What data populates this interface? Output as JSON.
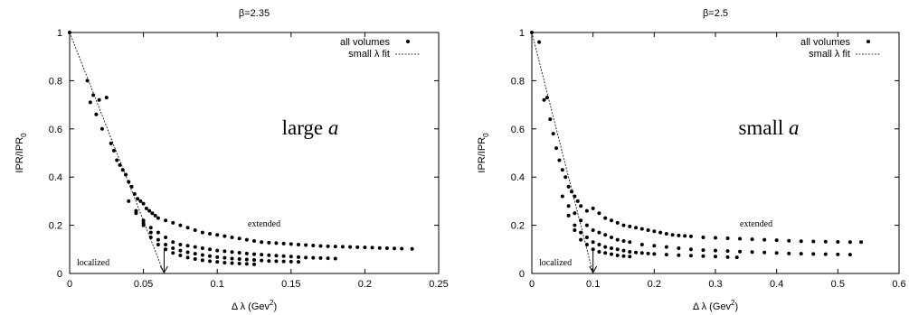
{
  "chart_data": [
    {
      "type": "scatter",
      "title": "β=2.35",
      "xlabel": "Δ λ (Gev",
      "xlabel_sup": "2",
      "xlabel_end": ")",
      "ylabel": "IPR/IPR",
      "ylabel_sub": "0",
      "xlim": [
        0,
        0.25
      ],
      "ylim": [
        0,
        1
      ],
      "xticks": [
        0,
        0.05,
        0.1,
        0.15,
        0.2,
        0.25
      ],
      "xtick_labels": [
        "0",
        "0.05",
        "0.1",
        "0.15",
        "0.2",
        "0.25"
      ],
      "yticks": [
        0,
        0.2,
        0.4,
        0.6,
        0.8,
        1
      ],
      "ytick_labels": [
        "0",
        "0.2",
        "0.4",
        "0.6",
        "0.8",
        "1"
      ],
      "legend_position": "top-right",
      "legend": [
        "all volumes",
        "small λ fit"
      ],
      "big_label": "large",
      "big_label_italic": "a",
      "annotation_extended": "extended",
      "annotation_localized": "localized",
      "fit_line": {
        "x0": 0,
        "y0": 1,
        "x1": 0.064,
        "y1": 0
      },
      "arrow_x": 0.064,
      "series": [
        {
          "name": "all volumes",
          "x": [
            0,
            0.012,
            0.014,
            0.016,
            0.018,
            0.02,
            0.022,
            0.025,
            0.028,
            0.03,
            0.032,
            0.034,
            0.036,
            0.038,
            0.04,
            0.042,
            0.044,
            0.046,
            0.048,
            0.05,
            0.052,
            0.054,
            0.056,
            0.058,
            0.06,
            0.065,
            0.07,
            0.075,
            0.08,
            0.085,
            0.09,
            0.095,
            0.1,
            0.105,
            0.11,
            0.115,
            0.12,
            0.125,
            0.13,
            0.135,
            0.14,
            0.145,
            0.15,
            0.155,
            0.16,
            0.165,
            0.17,
            0.175,
            0.18,
            0.185,
            0.19,
            0.195,
            0.2,
            0.205,
            0.21,
            0.215,
            0.22,
            0.225,
            0.232
          ],
          "y": [
            1,
            0.8,
            0.71,
            0.74,
            0.66,
            0.72,
            0.6,
            0.73,
            0.54,
            0.51,
            0.47,
            0.45,
            0.43,
            0.41,
            0.38,
            0.36,
            0.33,
            0.31,
            0.3,
            0.29,
            0.27,
            0.26,
            0.25,
            0.24,
            0.23,
            0.22,
            0.21,
            0.2,
            0.19,
            0.18,
            0.17,
            0.165,
            0.16,
            0.155,
            0.15,
            0.145,
            0.14,
            0.135,
            0.13,
            0.128,
            0.126,
            0.124,
            0.122,
            0.12,
            0.118,
            0.116,
            0.114,
            0.113,
            0.112,
            0.111,
            0.11,
            0.109,
            0.108,
            0.107,
            0.106,
            0.105,
            0.104,
            0.103,
            0.102
          ]
        },
        {
          "name": "",
          "x": [
            0.04,
            0.045,
            0.05,
            0.055,
            0.06,
            0.065,
            0.07,
            0.075,
            0.08,
            0.085,
            0.09,
            0.095,
            0.1,
            0.105,
            0.11,
            0.115,
            0.12,
            0.125,
            0.13,
            0.135,
            0.14,
            0.145,
            0.15,
            0.155,
            0.16,
            0.165,
            0.17,
            0.175,
            0.18
          ],
          "y": [
            0.3,
            0.26,
            0.22,
            0.19,
            0.17,
            0.15,
            0.13,
            0.12,
            0.115,
            0.11,
            0.105,
            0.1,
            0.095,
            0.092,
            0.089,
            0.086,
            0.083,
            0.08,
            0.078,
            0.076,
            0.074,
            0.072,
            0.07,
            0.068,
            0.066,
            0.065,
            0.064,
            0.063,
            0.062
          ]
        },
        {
          "name": "",
          "x": [
            0.045,
            0.05,
            0.055,
            0.06,
            0.065,
            0.07,
            0.075,
            0.08,
            0.085,
            0.09,
            0.095,
            0.1,
            0.105,
            0.11,
            0.115,
            0.12,
            0.125,
            0.13,
            0.135,
            0.14,
            0.145,
            0.15,
            0.155
          ],
          "y": [
            0.25,
            0.21,
            0.17,
            0.14,
            0.12,
            0.105,
            0.095,
            0.088,
            0.082,
            0.077,
            0.072,
            0.068,
            0.065,
            0.062,
            0.06,
            0.058,
            0.056,
            0.054,
            0.052,
            0.051,
            0.05,
            0.049,
            0.048
          ]
        },
        {
          "name": "",
          "x": [
            0.05,
            0.055,
            0.06,
            0.065,
            0.07,
            0.075,
            0.08,
            0.085,
            0.09,
            0.095,
            0.1,
            0.105,
            0.11,
            0.115,
            0.12,
            0.125
          ],
          "y": [
            0.2,
            0.15,
            0.12,
            0.1,
            0.085,
            0.075,
            0.066,
            0.06,
            0.055,
            0.051,
            0.048,
            0.045,
            0.043,
            0.041,
            0.04,
            0.038
          ]
        }
      ]
    },
    {
      "type": "scatter",
      "title": "β=2.5",
      "xlabel": "Δ λ (Gev",
      "xlabel_sup": "2",
      "xlabel_end": ")",
      "ylabel": "IPR/IPR",
      "ylabel_sub": "0",
      "xlim": [
        0,
        0.6
      ],
      "ylim": [
        0,
        1
      ],
      "xticks": [
        0,
        0.1,
        0.2,
        0.3,
        0.4,
        0.5,
        0.6
      ],
      "xtick_labels": [
        "0",
        "0.1",
        "0.2",
        "0.3",
        "0.4",
        "0.5",
        "0.6"
      ],
      "yticks": [
        0,
        0.2,
        0.4,
        0.6,
        0.8,
        1
      ],
      "ytick_labels": [
        "0",
        "0.2",
        "0.4",
        "0.6",
        "0.8",
        "1"
      ],
      "legend_position": "top-right",
      "legend": [
        "all volumes",
        "small λ fit"
      ],
      "big_label": "small",
      "big_label_italic": "a",
      "annotation_extended": "extended",
      "annotation_localized": "localized",
      "fit_line": {
        "x0": 0,
        "y0": 1,
        "x1": 0.1,
        "y1": 0
      },
      "arrow_x": 0.1,
      "series": [
        {
          "name": "all volumes",
          "x": [
            0,
            0.012,
            0.02,
            0.025,
            0.03,
            0.035,
            0.04,
            0.045,
            0.05,
            0.055,
            0.06,
            0.065,
            0.07,
            0.075,
            0.08,
            0.09,
            0.1,
            0.11,
            0.12,
            0.13,
            0.14,
            0.15,
            0.16,
            0.17,
            0.18,
            0.19,
            0.2,
            0.21,
            0.22,
            0.23,
            0.24,
            0.25,
            0.26,
            0.28,
            0.3,
            0.32,
            0.34,
            0.36,
            0.38,
            0.4,
            0.42,
            0.44,
            0.46,
            0.48,
            0.5,
            0.52,
            0.538
          ],
          "y": [
            1,
            0.96,
            0.72,
            0.73,
            0.64,
            0.58,
            0.52,
            0.47,
            0.43,
            0.4,
            0.36,
            0.34,
            0.32,
            0.3,
            0.28,
            0.26,
            0.27,
            0.25,
            0.23,
            0.22,
            0.21,
            0.2,
            0.195,
            0.19,
            0.185,
            0.18,
            0.175,
            0.17,
            0.165,
            0.16,
            0.158,
            0.156,
            0.154,
            0.15,
            0.148,
            0.146,
            0.144,
            0.142,
            0.14,
            0.138,
            0.136,
            0.134,
            0.133,
            0.132,
            0.131,
            0.13,
            0.13
          ]
        },
        {
          "name": "",
          "x": [
            0.05,
            0.06,
            0.07,
            0.08,
            0.09,
            0.1,
            0.11,
            0.12,
            0.13,
            0.14,
            0.15,
            0.16,
            0.18,
            0.2,
            0.22,
            0.24,
            0.26,
            0.28,
            0.3,
            0.32,
            0.34,
            0.36,
            0.38,
            0.4,
            0.42,
            0.44,
            0.46,
            0.48,
            0.5,
            0.52
          ],
          "y": [
            0.32,
            0.28,
            0.25,
            0.22,
            0.2,
            0.18,
            0.17,
            0.16,
            0.15,
            0.14,
            0.135,
            0.13,
            0.12,
            0.115,
            0.11,
            0.105,
            0.1,
            0.097,
            0.095,
            0.093,
            0.091,
            0.089,
            0.087,
            0.085,
            0.083,
            0.082,
            0.081,
            0.08,
            0.079,
            0.078
          ]
        },
        {
          "name": "",
          "x": [
            0.06,
            0.07,
            0.08,
            0.09,
            0.1,
            0.11,
            0.12,
            0.13,
            0.14,
            0.15,
            0.16,
            0.17,
            0.18,
            0.19,
            0.2,
            0.22,
            0.24,
            0.26,
            0.28,
            0.3,
            0.32,
            0.335
          ],
          "y": [
            0.24,
            0.2,
            0.17,
            0.15,
            0.13,
            0.12,
            0.11,
            0.105,
            0.1,
            0.095,
            0.09,
            0.087,
            0.085,
            0.083,
            0.081,
            0.078,
            0.076,
            0.074,
            0.072,
            0.07,
            0.068,
            0.067
          ]
        },
        {
          "name": "",
          "x": [
            0.07,
            0.08,
            0.09,
            0.1,
            0.11,
            0.12,
            0.13,
            0.14,
            0.15,
            0.16
          ],
          "y": [
            0.18,
            0.14,
            0.12,
            0.1,
            0.09,
            0.085,
            0.08,
            0.075,
            0.072,
            0.07
          ]
        }
      ]
    }
  ]
}
